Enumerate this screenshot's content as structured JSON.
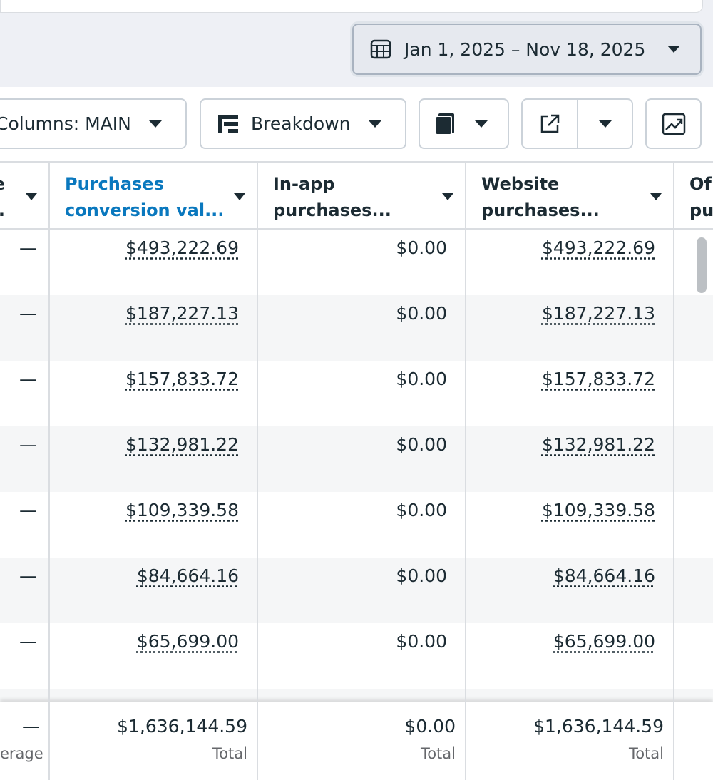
{
  "date_range": "Jan 1, 2025 – Nov 18, 2025",
  "toolbar": {
    "columns": "Columns: MAIN",
    "breakdown": "Breakdown"
  },
  "table": {
    "headers": [
      [
        "e",
        "."
      ],
      [
        "Purchases",
        "conversion val..."
      ],
      [
        "In-app",
        "purchases..."
      ],
      [
        "Website",
        "purchases..."
      ],
      [
        "Of",
        "pu"
      ]
    ],
    "rows": [
      [
        "—",
        "$493,222.69",
        "$0.00",
        "$493,222.69"
      ],
      [
        "—",
        "$187,227.13",
        "$0.00",
        "$187,227.13"
      ],
      [
        "—",
        "$157,833.72",
        "$0.00",
        "$157,833.72"
      ],
      [
        "—",
        "$132,981.22",
        "$0.00",
        "$132,981.22"
      ],
      [
        "—",
        "$109,339.58",
        "$0.00",
        "$109,339.58"
      ],
      [
        "—",
        "$84,664.16",
        "$0.00",
        "$84,664.16"
      ],
      [
        "—",
        "$65,699.00",
        "$0.00",
        "$65,699.00"
      ]
    ],
    "footer": {
      "values": [
        "—",
        "$1,636,144.59",
        "$0.00",
        "$1,636,144.59"
      ],
      "labels": [
        "erage",
        "Total",
        "Total",
        "Total"
      ]
    }
  }
}
